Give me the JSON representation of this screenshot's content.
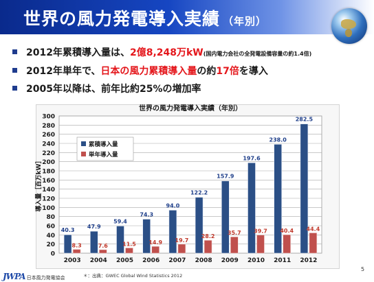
{
  "slide": {
    "title": "世界の風力発電導入実績",
    "title_sub": "（年別）",
    "bullets": [
      {
        "parts": [
          {
            "t": "2012年累積導入量は、",
            "c": ""
          },
          {
            "t": "2億8,248万kW",
            "c": "red"
          },
          {
            "t": "(国内電力会社の全発電設備容量の約1.4倍)",
            "c": "small"
          }
        ]
      },
      {
        "parts": [
          {
            "t": "2012年単年で、",
            "c": ""
          },
          {
            "t": "日本の風力累積導入量",
            "c": "red"
          },
          {
            "t": "の約",
            "c": ""
          },
          {
            "t": "17倍",
            "c": "red"
          },
          {
            "t": "を導入",
            "c": ""
          }
        ]
      },
      {
        "parts": [
          {
            "t": "2005年以降は、前年比約25%の増加率",
            "c": ""
          }
        ]
      }
    ],
    "source": "＊：出典：GWEC Global Wind Statistics 2012",
    "logo_mark": "JWPA",
    "logo_text": "日本風力発電協会",
    "page_number": "5"
  },
  "colors": {
    "title_bar_start": "#0a2a8c",
    "accent_red": "#e4161b",
    "bullet_square": "#1f3c8e",
    "series_cumulative": "#2b4f86",
    "series_annual": "#c0504d",
    "label_cumulative": "#1f3f8a",
    "label_annual": "#c0392b"
  },
  "chart_data": {
    "type": "bar",
    "title": "世界の風力発電導入実績（年別）",
    "xlabel": "",
    "ylabel": "導入量［百万kW］",
    "ylim": [
      0,
      300
    ],
    "ytick_step": 20,
    "grid": "horizontal",
    "legend_position": "top-left",
    "categories": [
      "2003",
      "2004",
      "2005",
      "2006",
      "2007",
      "2008",
      "2009",
      "2010",
      "2011",
      "2012"
    ],
    "series": [
      {
        "name": "累積導入量",
        "values": [
          40.3,
          47.9,
          59.4,
          74.3,
          94.0,
          122.2,
          157.9,
          197.6,
          238.0,
          282.5
        ]
      },
      {
        "name": "単年導入量",
        "values": [
          8.3,
          7.6,
          11.5,
          14.9,
          19.7,
          28.2,
          35.7,
          39.7,
          40.4,
          44.4
        ]
      }
    ]
  }
}
